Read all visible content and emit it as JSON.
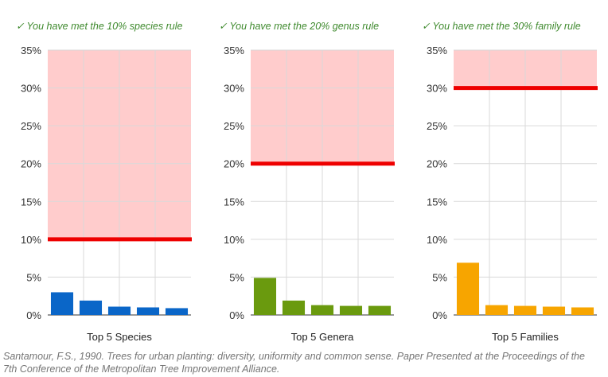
{
  "chart_data": [
    {
      "type": "bar",
      "message": "You have met the 10% species rule",
      "xlabel": "Top 5 Species",
      "values": [
        3.0,
        1.9,
        1.1,
        1.0,
        0.9
      ],
      "color": "#0a66c8",
      "threshold": 10,
      "ylim": [
        0,
        35
      ],
      "yticks": [
        "0%",
        "5%",
        "10%",
        "15%",
        "20%",
        "25%",
        "30%",
        "35%"
      ],
      "grid": true
    },
    {
      "type": "bar",
      "message": "You have met the 20% genus rule",
      "xlabel": "Top 5 Genera",
      "values": [
        4.9,
        1.9,
        1.3,
        1.2,
        1.2
      ],
      "color": "#6a9a0e",
      "threshold": 20,
      "ylim": [
        0,
        35
      ],
      "yticks": [
        "0%",
        "5%",
        "10%",
        "15%",
        "20%",
        "25%",
        "30%",
        "35%"
      ],
      "grid": true
    },
    {
      "type": "bar",
      "message": "You have met the 30% family rule",
      "xlabel": "Top 5 Families",
      "values": [
        6.9,
        1.3,
        1.2,
        1.1,
        1.0
      ],
      "color": "#f7a500",
      "threshold": 30,
      "ylim": [
        0,
        35
      ],
      "yticks": [
        "0%",
        "5%",
        "10%",
        "15%",
        "20%",
        "25%",
        "30%",
        "35%"
      ],
      "grid": true
    }
  ],
  "colors": {
    "threshold_line": "#ee0000",
    "danger_zone": "#ffcccc",
    "message_text": "#3f8a2e",
    "check_icon": "check-mark-icon"
  },
  "check_mark": "✓",
  "citation": "Santamour, F.S., 1990. Trees for urban planting: diversity, uniformity and common sense. Paper Presented at the Proceedings of the 7th Conference of the Metropolitan Tree Improvement Alliance."
}
